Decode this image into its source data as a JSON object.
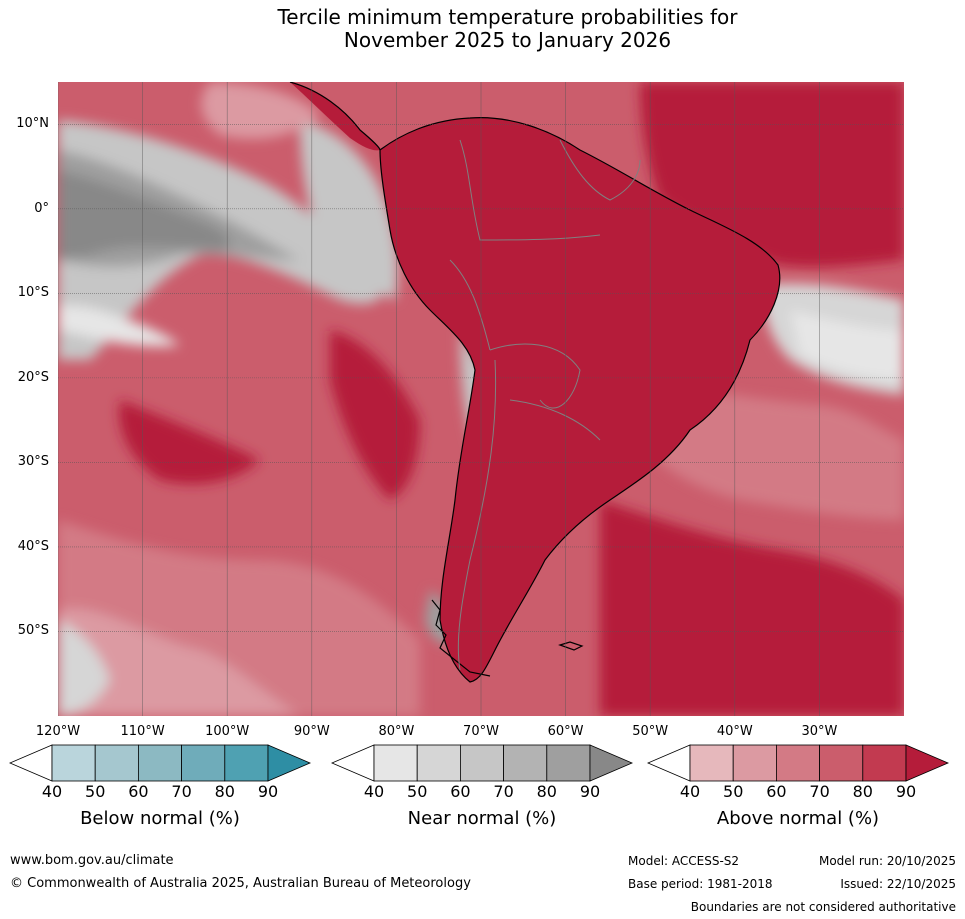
{
  "title": {
    "line1": "Tercile minimum temperature probabilities for",
    "line2": "November 2025 to January 2026"
  },
  "colors": {
    "above90": "#b51c3a",
    "above80": "#c23a50",
    "above70": "#cb5d6c",
    "above60": "#d37a85",
    "above50": "#dc9aa2",
    "above40": "#e6b8bc",
    "near40": "#e6e6e6",
    "near50": "#d6d6d6",
    "near60": "#c6c6c6",
    "near70": "#b3b3b3",
    "near80": "#9f9f9f",
    "near90": "#888888",
    "below40": "#bad5dc",
    "below50": "#a5c7cf",
    "below60": "#8cb9c2",
    "below70": "#6facba",
    "below80": "#4fa1b2",
    "below90": "#2e8ea4",
    "land_boundary": "#000000",
    "country_boundary": "#808080",
    "grid": "#555555"
  },
  "chart_data": {
    "type": "heatmap",
    "title": "Tercile minimum temperature probabilities for November 2025 to January 2026",
    "lat_range": [
      -60,
      15
    ],
    "lon_range": [
      -120,
      -20
    ],
    "lat_ticks": [
      "10°N",
      "0°",
      "10°S",
      "20°S",
      "30°S",
      "40°S",
      "50°S"
    ],
    "lat_values": [
      10,
      0,
      -10,
      -20,
      -30,
      -40,
      -50
    ],
    "lon_ticks": [
      "120°W",
      "110°W",
      "100°W",
      "90°W",
      "80°W",
      "70°W",
      "60°W",
      "50°W",
      "40°W",
      "30°W"
    ],
    "lon_values": [
      -120,
      -110,
      -100,
      -90,
      -80,
      -70,
      -60,
      -50,
      -40,
      -30
    ],
    "colorbars": [
      {
        "name": "below",
        "label": "Below normal (%)",
        "ticks": [
          "40",
          "50",
          "60",
          "70",
          "80",
          "90"
        ],
        "colors": [
          "#bad5dc",
          "#a5c7cf",
          "#8cb9c2",
          "#6facba",
          "#4fa1b2",
          "#2e8ea4"
        ]
      },
      {
        "name": "near",
        "label": "Near normal (%)",
        "ticks": [
          "40",
          "50",
          "60",
          "70",
          "80",
          "90"
        ],
        "colors": [
          "#e6e6e6",
          "#d6d6d6",
          "#c6c6c6",
          "#b3b3b3",
          "#9f9f9f",
          "#888888"
        ]
      },
      {
        "name": "above",
        "label": "Above normal (%)",
        "ticks": [
          "40",
          "50",
          "60",
          "70",
          "80",
          "90"
        ],
        "colors": [
          "#e6b8bc",
          "#dc9aa2",
          "#d37a85",
          "#cb5d6c",
          "#c23a50",
          "#b51c3a"
        ]
      }
    ],
    "regions": [
      {
        "category": "above",
        "level": 90,
        "description": "Most of South American land mass and western/southern Atlantic"
      },
      {
        "category": "above",
        "level": 70,
        "description": "Southeast Pacific"
      },
      {
        "category": "near",
        "level": 80,
        "description": "Equatorial eastern Pacific"
      },
      {
        "category": "near",
        "level": 50,
        "description": "Tropical western Atlantic east of Brazil"
      }
    ]
  },
  "footer": {
    "website": "www.bom.gov.au/climate",
    "copyright": "© Commonwealth of Australia 2025, Australian Bureau of Meteorology",
    "model": "Model: ACCESS-S2",
    "base_period": "Base period: 1981-2018",
    "model_run": "Model run: 20/10/2025",
    "issued": "Issued: 22/10/2025",
    "disclaimer": "Boundaries are not considered authoritative"
  }
}
